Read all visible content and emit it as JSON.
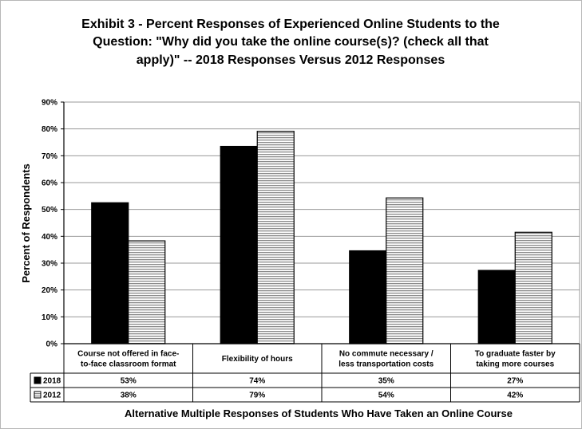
{
  "chart_data": {
    "type": "bar",
    "title_lines": [
      "Exhibit 3 - Percent Responses of Experienced Online Students  to the",
      "Question: \"Why did you take the online course(s)? (check all that",
      "apply)\"  --  2018 Responses Versus 2012 Responses"
    ],
    "ylabel": "Percent of Respondents",
    "xlabel": "Alternative Multiple Responses of Students Who Have Taken an Online Course",
    "ylim": [
      0,
      90
    ],
    "yticks": [
      "0%",
      "10%",
      "20%",
      "30%",
      "40%",
      "50%",
      "60%",
      "70%",
      "80%",
      "90%"
    ],
    "grid": true,
    "legend_placement": "data-table",
    "categories": [
      [
        "Course not offered in face-",
        "to-face classroom format"
      ],
      [
        "Flexibility of hours"
      ],
      [
        "No commute necessary /",
        "less transportation costs"
      ],
      [
        "To graduate faster by",
        "taking more courses"
      ]
    ],
    "series": [
      {
        "name": "2018",
        "color": "#000000",
        "pattern": "solid",
        "values": [
          52.5,
          73.5,
          34.6,
          27.3
        ],
        "labels": [
          "53%",
          "74%",
          "35%",
          "27%"
        ]
      },
      {
        "name": "2012",
        "color": "#bfbfbf",
        "pattern": "horizontal-lines",
        "values": [
          38.3,
          79.1,
          54.3,
          41.5
        ],
        "labels": [
          "38%",
          "79%",
          "54%",
          "42%"
        ]
      }
    ]
  }
}
